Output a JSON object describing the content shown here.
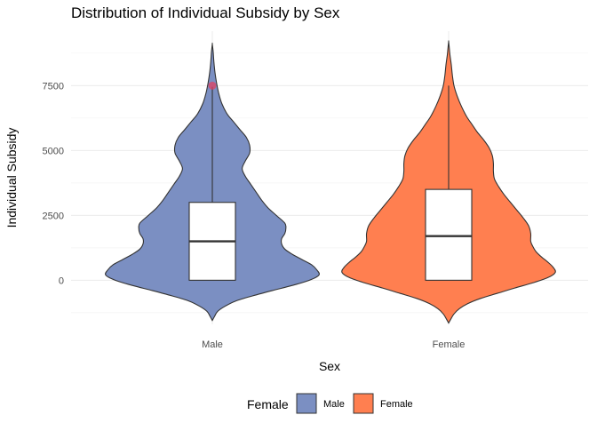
{
  "chart_data": {
    "type": "violin",
    "title": "Distribution of Individual Subsidy by Sex",
    "xlabel": "Sex",
    "ylabel": "Individual Subsidy",
    "categories": [
      "Male",
      "Female"
    ],
    "y_ticks": [
      0,
      2500,
      5000,
      7500
    ],
    "y_tick_labels": [
      "0",
      "2500",
      "5000",
      "7500"
    ],
    "ylim": [
      -1700,
      9600
    ],
    "grid": true,
    "legend": {
      "title": "Female",
      "position": "bottom",
      "entries": [
        "Male",
        "Female"
      ]
    },
    "series": [
      {
        "name": "Male",
        "color": "#7b8fc2",
        "violin_range": [
          -1550,
          9100
        ],
        "density_profile": [
          [
            -1550,
            0.0
          ],
          [
            -1400,
            0.02
          ],
          [
            -1200,
            0.05
          ],
          [
            -1000,
            0.12
          ],
          [
            -800,
            0.22
          ],
          [
            -600,
            0.38
          ],
          [
            -400,
            0.56
          ],
          [
            -200,
            0.75
          ],
          [
            0,
            0.91
          ],
          [
            200,
            1.0
          ],
          [
            400,
            0.98
          ],
          [
            600,
            0.93
          ],
          [
            800,
            0.84
          ],
          [
            1000,
            0.75
          ],
          [
            1200,
            0.68
          ],
          [
            1400,
            0.65
          ],
          [
            1600,
            0.65
          ],
          [
            1800,
            0.68
          ],
          [
            2000,
            0.69
          ],
          [
            2200,
            0.68
          ],
          [
            2500,
            0.6
          ],
          [
            2800,
            0.52
          ],
          [
            3100,
            0.46
          ],
          [
            3400,
            0.41
          ],
          [
            3700,
            0.36
          ],
          [
            4000,
            0.31
          ],
          [
            4300,
            0.28
          ],
          [
            4600,
            0.31
          ],
          [
            4900,
            0.35
          ],
          [
            5200,
            0.35
          ],
          [
            5500,
            0.32
          ],
          [
            5800,
            0.26
          ],
          [
            6100,
            0.2
          ],
          [
            6400,
            0.14
          ],
          [
            6800,
            0.09
          ],
          [
            7200,
            0.06
          ],
          [
            7600,
            0.04
          ],
          [
            8000,
            0.025
          ],
          [
            8400,
            0.015
          ],
          [
            8800,
            0.008
          ],
          [
            9100,
            0.0
          ]
        ],
        "box": {
          "lower_whisker": 0,
          "q1": 0,
          "median": 1500,
          "q3": 3000,
          "upper_whisker": 7450
        },
        "outliers": [
          7500
        ],
        "outlier_color": "#e04060"
      },
      {
        "name": "Female",
        "color": "#ff7f50",
        "violin_range": [
          -1650,
          9200
        ],
        "density_profile": [
          [
            -1650,
            0.0
          ],
          [
            -1500,
            0.02
          ],
          [
            -1300,
            0.05
          ],
          [
            -1100,
            0.1
          ],
          [
            -900,
            0.18
          ],
          [
            -700,
            0.3
          ],
          [
            -500,
            0.46
          ],
          [
            -300,
            0.62
          ],
          [
            -100,
            0.79
          ],
          [
            100,
            0.93
          ],
          [
            300,
            1.0
          ],
          [
            500,
            0.98
          ],
          [
            700,
            0.93
          ],
          [
            900,
            0.87
          ],
          [
            1100,
            0.82
          ],
          [
            1300,
            0.79
          ],
          [
            1500,
            0.77
          ],
          [
            1800,
            0.77
          ],
          [
            2100,
            0.75
          ],
          [
            2400,
            0.7
          ],
          [
            2700,
            0.64
          ],
          [
            3000,
            0.58
          ],
          [
            3300,
            0.52
          ],
          [
            3600,
            0.47
          ],
          [
            3900,
            0.43
          ],
          [
            4200,
            0.42
          ],
          [
            4500,
            0.42
          ],
          [
            4800,
            0.41
          ],
          [
            5100,
            0.38
          ],
          [
            5400,
            0.33
          ],
          [
            5700,
            0.27
          ],
          [
            6000,
            0.22
          ],
          [
            6300,
            0.17
          ],
          [
            6700,
            0.12
          ],
          [
            7100,
            0.08
          ],
          [
            7500,
            0.05
          ],
          [
            7900,
            0.035
          ],
          [
            8300,
            0.025
          ],
          [
            8700,
            0.012
          ],
          [
            9000,
            0.005
          ],
          [
            9200,
            0.0
          ]
        ],
        "box": {
          "lower_whisker": 0,
          "q1": 0,
          "median": 1700,
          "q3": 3500,
          "upper_whisker": 7500
        },
        "outliers": [],
        "outlier_color": "#e04060"
      }
    ]
  }
}
